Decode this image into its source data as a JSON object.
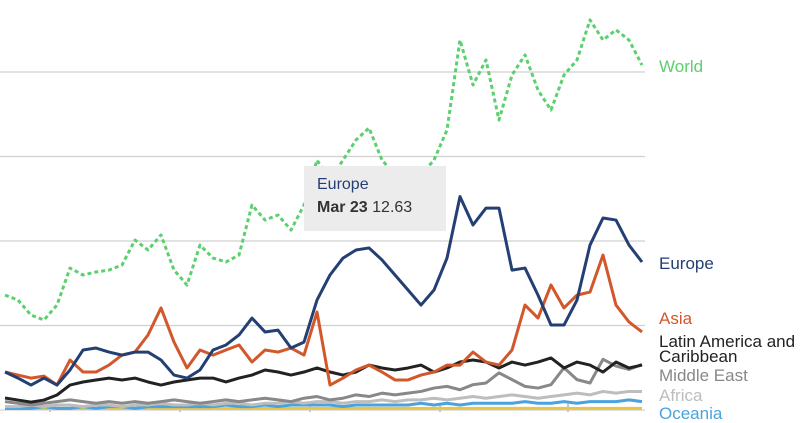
{
  "chart_data": {
    "type": "line",
    "categories": [
      null,
      null,
      null,
      null,
      null,
      null,
      null,
      null,
      null,
      null,
      null,
      null,
      null,
      null,
      null,
      null,
      null,
      null,
      null,
      null,
      null,
      null,
      null,
      null,
      null,
      null,
      null,
      null,
      null,
      null,
      null,
      null,
      null,
      null,
      null,
      "Mar 23",
      null,
      null,
      null,
      null,
      null,
      null,
      null,
      null,
      null,
      null,
      null,
      null,
      null,
      null
    ],
    "ylim": [
      -0.53,
      24.26
    ],
    "yticks": [
      0,
      5,
      10,
      15,
      20
    ],
    "grid": true,
    "tooltip": {
      "series": 1,
      "index": 35
    },
    "series": [
      {
        "name": "World",
        "color": "#5ccf6e",
        "dashed": true,
        "values": [
          6.8,
          6.51,
          5.62,
          5.33,
          6.21,
          8.4,
          7.99,
          8.17,
          8.28,
          8.58,
          10.06,
          9.47,
          10.36,
          8.28,
          7.4,
          9.76,
          8.99,
          8.76,
          9.17,
          12.13,
          11.24,
          11.54,
          10.65,
          12.13,
          14.79,
          13.61,
          14.79,
          15.98,
          16.69,
          14.79,
          13.91,
          13.31,
          13.91,
          14.79,
          16.57,
          21.89,
          19.23,
          20.71,
          17.16,
          19.82,
          21.01,
          18.93,
          17.75,
          19.82,
          20.71,
          23.08,
          21.89,
          22.49,
          21.89,
          20.41
        ]
      },
      {
        "name": "Europe",
        "color": "#243f73",
        "values": [
          2.25,
          1.89,
          1.48,
          1.89,
          1.48,
          2.37,
          3.55,
          3.67,
          3.43,
          3.25,
          3.43,
          3.43,
          2.96,
          2.07,
          1.89,
          2.37,
          3.55,
          3.85,
          4.44,
          5.44,
          4.62,
          4.73,
          3.67,
          4.02,
          6.51,
          7.99,
          8.99,
          9.47,
          9.59,
          8.88,
          7.99,
          7.1,
          6.21,
          7.1,
          8.99,
          12.63,
          10.95,
          11.95,
          11.95,
          8.28,
          8.4,
          6.8,
          5.03,
          5.03,
          6.51,
          9.76,
          11.36,
          11.24,
          9.76,
          8.76
        ]
      },
      {
        "name": "Asia",
        "color": "#d2572b",
        "values": [
          2.25,
          2.07,
          1.89,
          2.01,
          1.48,
          2.96,
          2.25,
          2.25,
          2.66,
          3.25,
          3.43,
          4.44,
          6.04,
          4.02,
          2.49,
          3.55,
          3.25,
          3.55,
          3.85,
          2.84,
          3.55,
          3.43,
          3.67,
          3.25,
          5.8,
          1.48,
          1.89,
          2.37,
          2.66,
          2.25,
          1.78,
          1.78,
          2.07,
          2.25,
          2.66,
          2.66,
          3.43,
          2.84,
          2.66,
          3.55,
          6.21,
          5.44,
          7.4,
          6.04,
          6.8,
          6.98,
          9.17,
          6.21,
          5.21,
          4.62
        ]
      },
      {
        "name": "Latin America and Caribbean",
        "color": "#222222",
        "label_color": "#222222",
        "values": [
          0.71,
          0.59,
          0.47,
          0.59,
          0.89,
          1.48,
          1.66,
          1.78,
          1.89,
          1.78,
          1.89,
          1.66,
          1.48,
          1.66,
          1.78,
          1.89,
          1.89,
          1.66,
          1.89,
          2.07,
          2.37,
          2.25,
          2.07,
          2.25,
          2.49,
          2.25,
          2.07,
          2.25,
          2.66,
          2.49,
          2.37,
          2.49,
          2.66,
          2.25,
          2.49,
          2.84,
          2.96,
          2.84,
          2.49,
          2.84,
          2.66,
          2.84,
          3.08,
          2.49,
          2.84,
          2.66,
          2.25,
          2.84,
          2.49,
          2.66
        ]
      },
      {
        "name": "Middle East",
        "color": "#888888",
        "values": [
          0.5,
          0.4,
          0.3,
          0.4,
          0.5,
          0.6,
          0.5,
          0.4,
          0.5,
          0.4,
          0.5,
          0.4,
          0.5,
          0.6,
          0.5,
          0.4,
          0.5,
          0.6,
          0.5,
          0.6,
          0.7,
          0.6,
          0.5,
          0.7,
          0.8,
          0.6,
          0.7,
          0.9,
          0.8,
          1.0,
          0.9,
          1.0,
          1.1,
          1.3,
          1.4,
          1.2,
          1.5,
          1.6,
          2.2,
          1.8,
          1.4,
          1.3,
          1.5,
          2.5,
          1.8,
          1.6,
          3.0,
          2.6,
          2.4,
          2.7
        ]
      },
      {
        "name": "Africa",
        "color": "#bdbdbd",
        "values": [
          0.2,
          0.2,
          0.3,
          0.2,
          0.3,
          0.3,
          0.2,
          0.3,
          0.3,
          0.2,
          0.3,
          0.3,
          0.4,
          0.3,
          0.3,
          0.4,
          0.3,
          0.4,
          0.4,
          0.3,
          0.4,
          0.4,
          0.5,
          0.4,
          0.5,
          0.5,
          0.4,
          0.5,
          0.5,
          0.6,
          0.5,
          0.6,
          0.6,
          0.7,
          0.6,
          0.7,
          0.8,
          0.7,
          0.8,
          0.9,
          0.8,
          0.7,
          0.8,
          0.9,
          1.0,
          0.9,
          1.1,
          1.0,
          1.1,
          1.1
        ]
      },
      {
        "name": "Oceania",
        "color": "#4aa3df",
        "values": [
          0.1,
          0.1,
          0.1,
          0.2,
          0.1,
          0.1,
          0.2,
          0.1,
          0.2,
          0.2,
          0.1,
          0.2,
          0.2,
          0.2,
          0.2,
          0.2,
          0.2,
          0.3,
          0.2,
          0.2,
          0.3,
          0.2,
          0.3,
          0.3,
          0.3,
          0.3,
          0.2,
          0.3,
          0.3,
          0.3,
          0.3,
          0.3,
          0.4,
          0.3,
          0.4,
          0.3,
          0.4,
          0.4,
          0.4,
          0.4,
          0.5,
          0.4,
          0.4,
          0.5,
          0.4,
          0.5,
          0.5,
          0.5,
          0.6,
          0.5
        ]
      },
      {
        "color": "#e8c547",
        "values": [
          0.1,
          0.1,
          0.1,
          0.1,
          0.1,
          0.1,
          0.1,
          0.1,
          0.1,
          0.1,
          0.1,
          0.1,
          0.1,
          0.1,
          0.1,
          0.1,
          0.1,
          0.1,
          0.1,
          0.1,
          0.1,
          0.1,
          0.1,
          0.1,
          0.1,
          0.1,
          0.1,
          0.1,
          0.1,
          0.1,
          0.1,
          0.1,
          0.1,
          0.1,
          0.1,
          0.1,
          0.1,
          0.1,
          0.1,
          0.1,
          0.1,
          0.1,
          0.1,
          0.1,
          0.1,
          0.1,
          0.1,
          0.1,
          0.1,
          0.1
        ]
      }
    ]
  }
}
